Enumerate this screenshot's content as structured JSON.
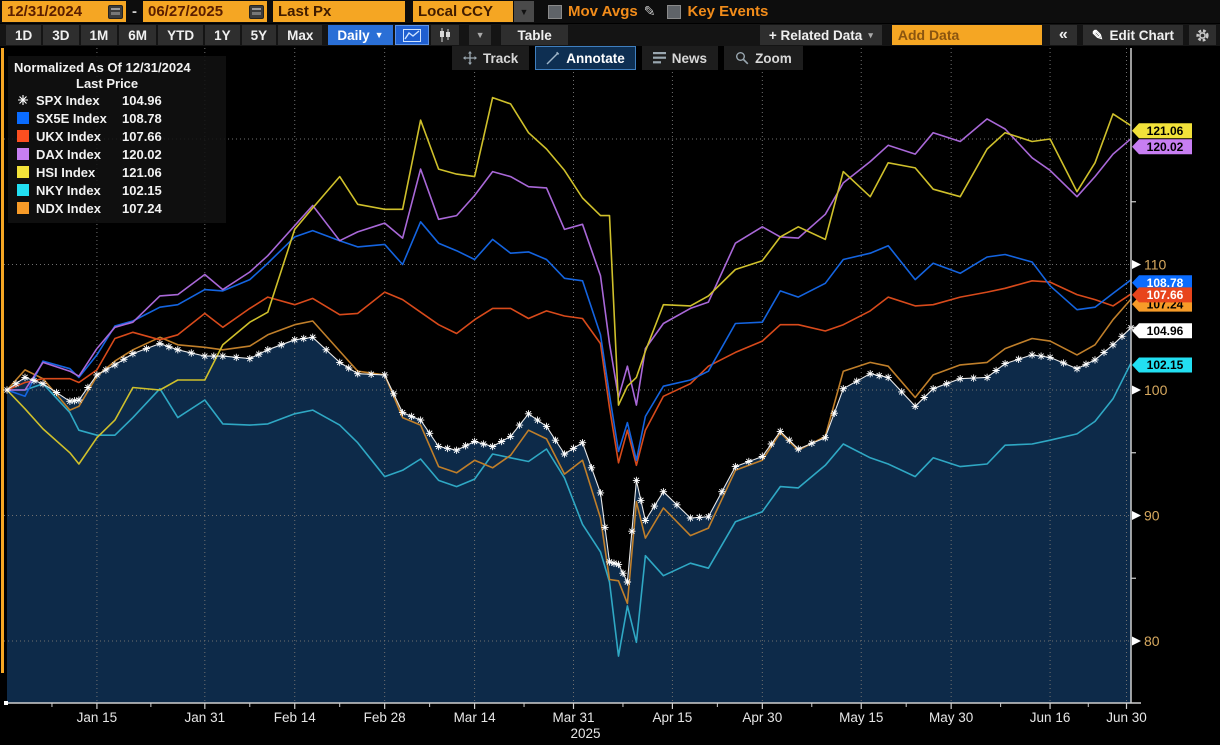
{
  "toolbar": {
    "date_start": "12/31/2024",
    "date_separator": "-",
    "date_end": "06/27/2025",
    "field_type": "Last Px",
    "currency": "Local CCY",
    "mov_avgs_label": "Mov Avgs",
    "key_events_label": "Key Events"
  },
  "nav": {
    "periods": [
      "1D",
      "3D",
      "1M",
      "6M",
      "YTD",
      "1Y",
      "5Y",
      "Max"
    ],
    "frequency": "Daily",
    "table_label": "Table",
    "related_data_label": "+ Related Data",
    "add_data_placeholder": "Add Data",
    "collapse_label": "«",
    "edit_chart_label": "Edit Chart"
  },
  "chart_tools": {
    "track": "Track",
    "annotate": "Annotate",
    "news": "News",
    "zoom": "Zoom",
    "active": "Annotate"
  },
  "legend": {
    "title": "Normalized As Of 12/31/2024",
    "subtitle": "Last Price"
  },
  "axes": {
    "y_ticks": [
      110,
      100,
      90,
      80
    ],
    "y_minor_ticks": [
      115,
      105,
      95,
      85
    ],
    "y_gridlines": [
      120,
      110,
      100,
      90,
      80
    ],
    "x_ticks": [
      {
        "label": "Jan 15",
        "day": 10
      },
      {
        "label": "Jan 31",
        "day": 22
      },
      {
        "label": "Feb 14",
        "day": 32
      },
      {
        "label": "Feb 28",
        "day": 42
      },
      {
        "label": "Mar 14",
        "day": 52
      },
      {
        "label": "Mar 31",
        "day": 63
      },
      {
        "label": "Apr 15",
        "day": 74
      },
      {
        "label": "Apr 30",
        "day": 84
      },
      {
        "label": "May 15",
        "day": 95
      },
      {
        "label": "May 30",
        "day": 105
      },
      {
        "label": "Jun 16",
        "day": 116
      },
      {
        "label": "Jun 30",
        "day": 124.5
      }
    ],
    "year_label": "2025"
  },
  "colors": {
    "accent_orange": "#f5a623",
    "chart_bg": "#000000",
    "area_fill": "#0d2a49",
    "grid": "#707070",
    "axis": "#cfcfcf",
    "y_label": "#d7a95f",
    "x_label": "#e6e6e6"
  },
  "chart_data": {
    "type": "line",
    "title": "Normalized As Of 12/31/2024",
    "subtitle": "Last Price",
    "normalized_base": 100,
    "base_date": "12/31/2024",
    "end_date": "06/27/2025",
    "ylim": [
      75,
      127
    ],
    "x_domain_days": [
      0,
      125
    ],
    "x_dates": [
      "12/31",
      "01/03",
      "01/07",
      "01/10",
      "01/13",
      "01/15",
      "01/17",
      "01/21",
      "01/24",
      "01/28",
      "01/31",
      "02/04",
      "02/07",
      "02/11",
      "02/14",
      "02/18",
      "02/21",
      "02/25",
      "02/28",
      "03/04",
      "03/06",
      "03/10",
      "03/12",
      "03/14",
      "03/18",
      "03/20",
      "03/24",
      "03/26",
      "03/28",
      "04/01",
      "04/03",
      "04/04",
      "04/07",
      "04/08",
      "04/09",
      "04/10",
      "04/14",
      "04/17",
      "04/22",
      "04/25",
      "04/30",
      "05/02",
      "05/06",
      "05/09",
      "05/13",
      "05/16",
      "05/20",
      "05/23",
      "05/28",
      "06/02",
      "06/05",
      "06/09",
      "06/12",
      "06/16",
      "06/19",
      "06/23",
      "06/25",
      "06/27"
    ],
    "x_days": [
      0,
      2,
      4,
      7,
      8,
      10,
      12,
      14,
      17,
      19,
      22,
      24,
      27,
      29,
      32,
      34,
      37,
      39,
      42,
      44,
      46,
      48,
      50,
      52,
      54,
      56,
      58,
      60,
      62,
      64,
      66,
      67,
      68,
      69,
      70,
      71,
      73,
      76,
      78,
      81,
      84,
      86,
      88,
      91,
      93,
      96,
      98,
      101,
      103,
      106,
      109,
      111,
      114,
      116,
      119,
      121,
      123,
      125
    ],
    "series": [
      {
        "id": "SPX",
        "name": "SPX Index",
        "marker": "asterisk",
        "line_color": "#e8e8e8",
        "swatch_color": "#ffffff",
        "tag_bg": "#ffffff",
        "tag_fg": "#000000",
        "last": 104.96,
        "values": [
          100,
          101.0,
          100.5,
          99.1,
          99.2,
          101.2,
          102.0,
          102.9,
          103.7,
          103.2,
          102.7,
          102.7,
          102.5,
          103.2,
          104.0,
          104.2,
          102.2,
          101.3,
          101.2,
          98.2,
          97.6,
          95.5,
          95.2,
          95.9,
          95.5,
          96.3,
          98.1,
          97.1,
          94.9,
          95.8,
          91.8,
          86.3,
          86.1,
          84.7,
          92.8,
          89.6,
          91.9,
          89.8,
          89.9,
          93.9,
          94.7,
          96.7,
          95.3,
          96.2,
          100.1,
          101.3,
          101.0,
          98.7,
          100.1,
          100.9,
          101.0,
          102.1,
          102.8,
          102.6,
          101.7,
          102.4,
          103.6,
          104.96
        ]
      },
      {
        "id": "SX5E",
        "name": "SX5E Index",
        "marker": "square",
        "line_color": "#1464e0",
        "swatch_color": "#0a6cff",
        "tag_bg": "#0a6cff",
        "tag_fg": "#ffffff",
        "last": 108.78,
        "values": [
          100,
          99.5,
          102.3,
          101.7,
          101.0,
          102.8,
          105.1,
          105.5,
          106.6,
          106.8,
          108.0,
          107.9,
          108.8,
          110.1,
          112.2,
          112.7,
          111.9,
          111.4,
          111.6,
          110.0,
          113.4,
          111.7,
          111.1,
          110.4,
          112.0,
          110.9,
          111.0,
          110.4,
          108.9,
          108.7,
          104.4,
          99.6,
          95.1,
          97.4,
          94.4,
          97.9,
          100.3,
          100.8,
          101.5,
          105.3,
          105.4,
          107.9,
          107.4,
          108.5,
          110.4,
          110.9,
          111.5,
          108.8,
          110.1,
          109.3,
          110.6,
          110.8,
          110.2,
          108.3,
          106.4,
          106.6,
          107.7,
          108.78
        ]
      },
      {
        "id": "UKX",
        "name": "UKX Index",
        "marker": "square",
        "line_color": "#d84a1b",
        "swatch_color": "#fc4f20",
        "tag_bg": "#e8441c",
        "tag_fg": "#ffffff",
        "last": 107.66,
        "values": [
          100,
          100.6,
          100.9,
          100.9,
          100.6,
          101.6,
          104.1,
          104.6,
          104.0,
          104.4,
          106.1,
          105.0,
          106.5,
          107.4,
          106.8,
          107.3,
          106.0,
          106.1,
          107.8,
          107.2,
          106.2,
          105.2,
          104.5,
          105.6,
          106.5,
          106.5,
          105.7,
          106.3,
          105.9,
          105.7,
          103.7,
          98.6,
          94.2,
          96.8,
          94.0,
          96.8,
          99.5,
          100.5,
          101.9,
          103.0,
          103.9,
          105.2,
          105.2,
          104.7,
          105.2,
          106.3,
          107.4,
          106.7,
          106.8,
          107.4,
          107.8,
          108.1,
          108.7,
          108.6,
          107.6,
          107.2,
          106.7,
          107.66
        ]
      },
      {
        "id": "DAX",
        "name": "DAX Index",
        "marker": "square",
        "line_color": "#a968d8",
        "swatch_color": "#c77ef2",
        "tag_bg": "#c77ef2",
        "tag_fg": "#000000",
        "last": 120.02,
        "values": [
          100,
          100.0,
          102.2,
          101.5,
          101.1,
          103.3,
          105.0,
          105.4,
          107.5,
          107.6,
          109.2,
          108.0,
          109.4,
          110.7,
          113.1,
          114.7,
          111.9,
          112.6,
          113.3,
          112.1,
          117.6,
          113.6,
          113.9,
          115.5,
          117.4,
          117.0,
          116.2,
          116.1,
          112.8,
          113.2,
          109.1,
          103.7,
          99.4,
          101.9,
          98.8,
          103.3,
          105.3,
          106.5,
          107.0,
          111.7,
          113.0,
          112.2,
          112.1,
          114.0,
          116.5,
          118.2,
          119.5,
          118.8,
          120.5,
          119.8,
          121.6,
          120.8,
          118.5,
          117.5,
          115.4,
          117.0,
          118.8,
          120.02
        ]
      },
      {
        "id": "HSI",
        "name": "HSI Index",
        "marker": "square",
        "line_color": "#cfc02b",
        "swatch_color": "#f2e23a",
        "tag_bg": "#f2e23a",
        "tag_fg": "#000000",
        "last": 121.06,
        "values": [
          100,
          98.5,
          96.9,
          95.0,
          94.1,
          96.2,
          97.6,
          100.2,
          100.0,
          100.8,
          100.8,
          103.6,
          105.4,
          106.2,
          112.8,
          114.5,
          117.0,
          114.8,
          114.4,
          114.4,
          121.5,
          117.6,
          117.2,
          117.0,
          123.3,
          122.8,
          120.5,
          119.2,
          117.5,
          115.3,
          113.9,
          113.9,
          98.8,
          100.3,
          101.0,
          103.1,
          106.8,
          106.7,
          107.5,
          109.6,
          110.3,
          112.2,
          113.0,
          112.0,
          117.4,
          115.4,
          118.1,
          117.7,
          116.0,
          115.4,
          119.2,
          120.5,
          119.8,
          120.0,
          115.8,
          118.1,
          122.0,
          121.06
        ]
      },
      {
        "id": "NKY",
        "name": "NKY Index",
        "marker": "square",
        "line_color": "#2fa8c4",
        "swatch_color": "#22dff2",
        "tag_bg": "#22dff2",
        "tag_fg": "#000000",
        "last": 102.15,
        "values": [
          100,
          100.0,
          100.5,
          98.2,
          96.8,
          96.4,
          96.4,
          97.8,
          100.1,
          97.8,
          99.2,
          97.3,
          97.2,
          97.3,
          98.1,
          98.4,
          97.2,
          95.8,
          93.1,
          93.6,
          94.5,
          92.8,
          92.3,
          92.9,
          94.9,
          94.6,
          94.3,
          95.3,
          93.0,
          89.3,
          87.1,
          84.7,
          78.8,
          82.8,
          79.9,
          86.8,
          85.2,
          86.2,
          85.8,
          89.5,
          90.3,
          92.3,
          92.2,
          94.0,
          95.7,
          94.6,
          94.1,
          93.1,
          94.6,
          93.9,
          94.1,
          95.6,
          95.7,
          96.0,
          96.5,
          97.5,
          99.3,
          102.15
        ]
      },
      {
        "id": "NDX",
        "name": "NDX Index",
        "marker": "square",
        "line_color": "#c07f2a",
        "swatch_color": "#f79b28",
        "tag_bg": "#f79b28",
        "tag_fg": "#000000",
        "last": 107.24,
        "values": [
          100,
          101.6,
          100.9,
          98.4,
          98.7,
          101.1,
          102.3,
          103.2,
          104.2,
          103.6,
          103.4,
          103.2,
          103.5,
          104.4,
          105.2,
          105.5,
          103.1,
          101.5,
          101.2,
          97.8,
          97.2,
          93.9,
          93.4,
          94.4,
          93.8,
          94.8,
          96.8,
          96.1,
          93.3,
          94.4,
          89.8,
          84.9,
          84.8,
          83.0,
          91.1,
          88.2,
          90.6,
          88.4,
          89.0,
          93.6,
          94.4,
          96.6,
          95.2,
          96.3,
          101.5,
          102.2,
          101.9,
          99.4,
          101.2,
          102.0,
          102.2,
          103.3,
          104.1,
          103.9,
          102.8,
          103.6,
          105.6,
          107.24
        ]
      }
    ]
  }
}
